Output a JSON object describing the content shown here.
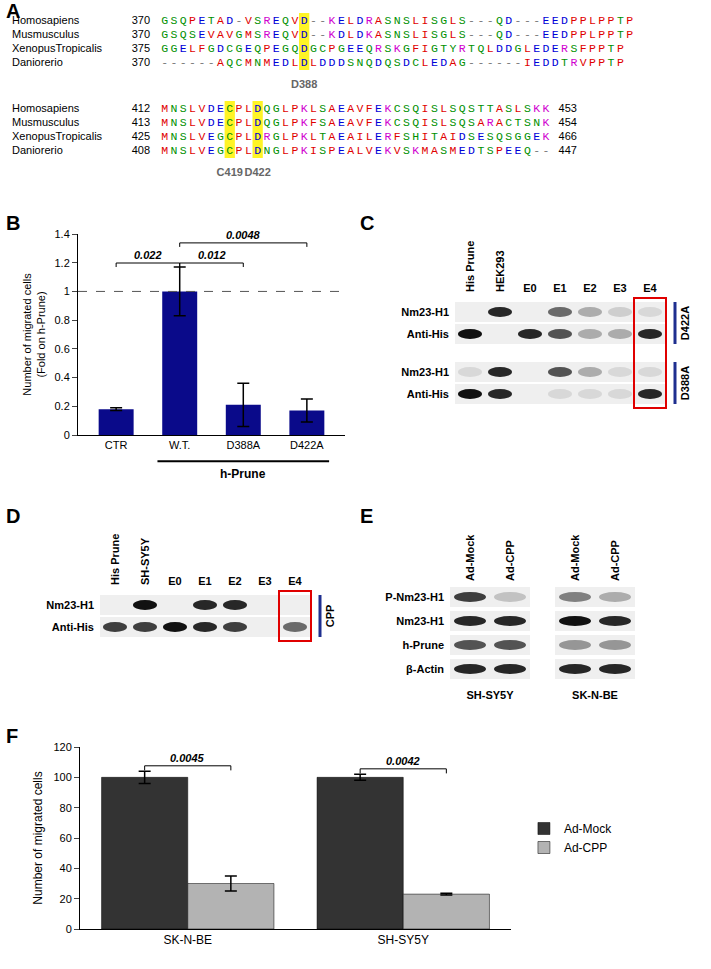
{
  "panel_labels": [
    "A",
    "B",
    "C",
    "D",
    "E",
    "F"
  ],
  "alignment": {
    "blocks": [
      {
        "rows": [
          {
            "species": "Homosapiens",
            "start": 370,
            "sequence": "GSQPETAD-VSREQVD--KELDRASNSLISGLS---QD---EEDPPLPPTP"
          },
          {
            "species": "Musmusculus",
            "start": 370,
            "sequence": "GSQSEVAVGMSREQVD--KDLDKASNSLISGLS---QD---EEDPPLPPTP"
          },
          {
            "species": "XenopusTropicalis",
            "start": 375,
            "sequence": "GGELFGDCGEQPEGQDGCPGEEQRSKGFIGTYRTQLDDGLEDERSFPPTP"
          },
          {
            "species": "Daniorerio",
            "start": 370,
            "sequence": "------AQCMNMEDLDLDDDSNQDQSDCLEDAG------IEDDTRVPPTP"
          }
        ],
        "highlights": [
          {
            "column": 15,
            "label": "D388"
          }
        ]
      },
      {
        "rows": [
          {
            "species": "Homosapiens",
            "start": 412,
            "sequence": "MNSLVDECPLDQGLPKLSAEAVFEKCSQISLSQSTTASLSKK",
            "end": 453
          },
          {
            "species": "Musmusculus",
            "start": 413,
            "sequence": "MNSLVDECPLDQGLPKFSAEAVFEKCSQISLSQSARACTSNK",
            "end": 454
          },
          {
            "species": "XenopusTropicalis",
            "start": 425,
            "sequence": "MNSLVEGCPLDRGLPKLTAEAILERFSHITAIDSESQSGGEK",
            "end": 466
          },
          {
            "species": "Daniorerio",
            "start": 408,
            "sequence": "MNSLVEGCPLDNGLPKISPEALVEKVSKMASMEDTSPEEQ--",
            "end": 447
          }
        ],
        "highlights": [
          {
            "column": 7,
            "label": "C419"
          },
          {
            "column": 10,
            "label": "D422"
          }
        ]
      }
    ]
  },
  "chart_data": [
    {
      "type": "bar",
      "categories": [
        "CTR",
        "W.T.",
        "D388A",
        "D422A"
      ],
      "values": [
        0.18,
        1,
        0.21,
        0.17
      ],
      "errors": [
        0.01,
        0.17,
        0.15,
        0.08
      ],
      "color": "#0a0a8a",
      "ylabel": "Number of migrated cells\n(Fold on h-Prune)",
      "ylim": [
        0,
        1.4
      ],
      "yticks": [
        0,
        0.2,
        0.4,
        0.6,
        0.8,
        1,
        1.2,
        1.4
      ],
      "grid": false,
      "reference_line": 1,
      "group_label": {
        "text": "h-Prune",
        "categories": [
          "W.T.",
          "D388A",
          "D422A"
        ]
      },
      "comparisons": [
        {
          "from": "CTR",
          "to": "W.T.",
          "label": "0.022"
        },
        {
          "from": "W.T.",
          "to": "D388A",
          "label": "0.012"
        },
        {
          "from": "W.T.",
          "to": "D422A",
          "label": "0.0048"
        }
      ]
    },
    {
      "type": "bar",
      "categories": [
        "SK-N-BE",
        "SH-SY5Y"
      ],
      "series": [
        {
          "name": "Ad-Mock",
          "color": "#333333",
          "values": [
            100,
            100
          ],
          "errors": [
            4,
            2
          ]
        },
        {
          "name": "Ad-CPP",
          "color": "#b3b3b3",
          "values": [
            30,
            23
          ],
          "errors": [
            5,
            0.5
          ]
        }
      ],
      "ylabel": "Number of migrated cells",
      "ylim": [
        0,
        120
      ],
      "yticks": [
        0,
        20,
        40,
        60,
        80,
        100,
        120
      ],
      "grid": false,
      "legend": "right",
      "comparisons": [
        {
          "category": "SK-N-BE",
          "label": "0.0045"
        },
        {
          "category": "SH-SY5Y",
          "label": "0.0042"
        }
      ]
    }
  ],
  "blots": {
    "C": {
      "lanes": [
        "His Prune",
        "HEK293",
        "E0",
        "E1",
        "E2",
        "E3",
        "E4"
      ],
      "highlight_lane": "E4",
      "groups": [
        {
          "label": "D422A",
          "rows": [
            {
              "label": "Nm23-H1",
              "bands": [
                0,
                0.9,
                0,
                0.6,
                0.3,
                0.15,
                0.1
              ]
            },
            {
              "label": "Anti-His",
              "bands": [
                1,
                0,
                0.9,
                0.7,
                0.3,
                0.3,
                0.9
              ]
            }
          ]
        },
        {
          "label": "D388A",
          "rows": [
            {
              "label": "Nm23-H1",
              "bands": [
                0.1,
                0.9,
                0,
                0.7,
                0.3,
                0.1,
                0.1
              ]
            },
            {
              "label": "Anti-His",
              "bands": [
                1,
                0.9,
                0,
                0.1,
                0.1,
                0.1,
                0.9
              ]
            }
          ]
        }
      ]
    },
    "D": {
      "lanes": [
        "His Prune",
        "SH-SY5Y",
        "E0",
        "E1",
        "E2",
        "E3",
        "E4"
      ],
      "highlight_lane": "E4",
      "groups": [
        {
          "label": "CPP",
          "rows": [
            {
              "label": "Nm23-H1",
              "bands": [
                0,
                1,
                0,
                0.9,
                0.9,
                0,
                0
              ]
            },
            {
              "label": "Anti-His",
              "bands": [
                0.8,
                0.8,
                1,
                0.9,
                0.8,
                0,
                0.6
              ]
            }
          ]
        }
      ]
    },
    "E": {
      "row_labels": [
        "P-Nm23-H1",
        "Nm23-H1",
        "h-Prune",
        "β-Actin"
      ],
      "blocks": [
        {
          "label": "SH-SY5Y",
          "lanes": [
            "Ad-Mock",
            "Ad-CPP"
          ],
          "rows": [
            [
              0.8,
              0.2
            ],
            [
              0.9,
              0.9
            ],
            [
              0.7,
              0.7
            ],
            [
              0.9,
              0.9
            ]
          ]
        },
        {
          "label": "SK-N-BE",
          "lanes": [
            "Ad-Mock",
            "Ad-CPP"
          ],
          "rows": [
            [
              0.5,
              0.3
            ],
            [
              1,
              0.9
            ],
            [
              0.4,
              0.4
            ],
            [
              0.9,
              0.9
            ]
          ]
        }
      ]
    }
  }
}
